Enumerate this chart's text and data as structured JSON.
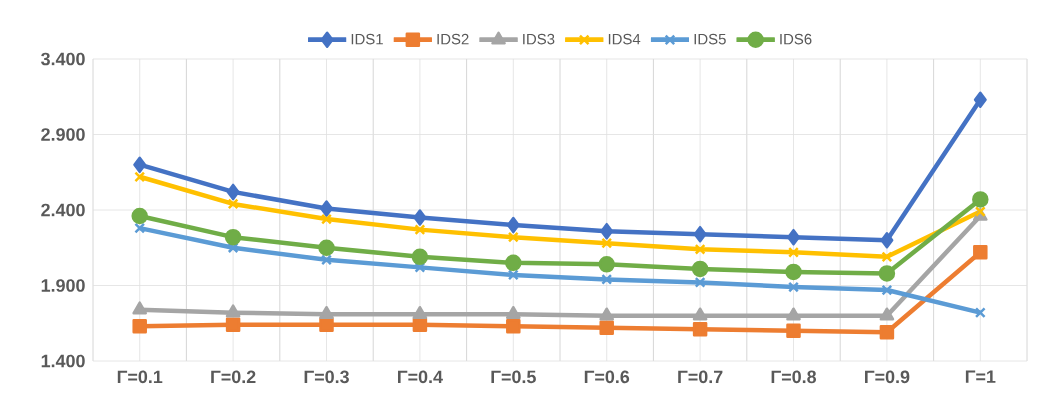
{
  "chart_data": {
    "type": "line",
    "categories": [
      "Γ=0.1",
      "Γ=0.2",
      "Γ=0.3",
      "Γ=0.4",
      "Γ=0.5",
      "Γ=0.6",
      "Γ=0.7",
      "Γ=0.8",
      "Γ=0.9",
      "Γ=1"
    ],
    "series": [
      {
        "name": "IDS1",
        "color": "#4472c4",
        "marker": "diamond",
        "values": [
          2.7,
          2.52,
          2.41,
          2.35,
          2.3,
          2.26,
          2.24,
          2.22,
          2.2,
          3.13
        ]
      },
      {
        "name": "IDS2",
        "color": "#ed7d31",
        "marker": "square",
        "values": [
          1.63,
          1.64,
          1.64,
          1.64,
          1.63,
          1.62,
          1.61,
          1.6,
          1.59,
          2.12
        ]
      },
      {
        "name": "IDS3",
        "color": "#a5a5a5",
        "marker": "triangle",
        "values": [
          1.74,
          1.72,
          1.71,
          1.71,
          1.71,
          1.7,
          1.7,
          1.7,
          1.7,
          2.36
        ]
      },
      {
        "name": "IDS4",
        "color": "#ffc000",
        "marker": "cross",
        "values": [
          2.62,
          2.44,
          2.34,
          2.27,
          2.22,
          2.18,
          2.14,
          2.12,
          2.09,
          2.39
        ]
      },
      {
        "name": "IDS5",
        "color": "#5b9bd5",
        "marker": "cross",
        "values": [
          2.28,
          2.15,
          2.07,
          2.02,
          1.97,
          1.94,
          1.92,
          1.89,
          1.87,
          1.72
        ]
      },
      {
        "name": "IDS6",
        "color": "#70ad47",
        "marker": "circle",
        "values": [
          2.36,
          2.22,
          2.15,
          2.09,
          2.05,
          2.04,
          2.01,
          1.99,
          1.98,
          2.47
        ]
      }
    ],
    "ylim": [
      1.4,
      3.4
    ],
    "yticks": [
      {
        "value": 1.4,
        "label": "1.400"
      },
      {
        "value": 1.9,
        "label": "1.900"
      },
      {
        "value": 2.4,
        "label": "2.400"
      },
      {
        "value": 2.9,
        "label": "2.900"
      },
      {
        "value": 3.4,
        "label": "3.400"
      }
    ],
    "grid": true,
    "legend": "top",
    "line_style": "solid"
  }
}
